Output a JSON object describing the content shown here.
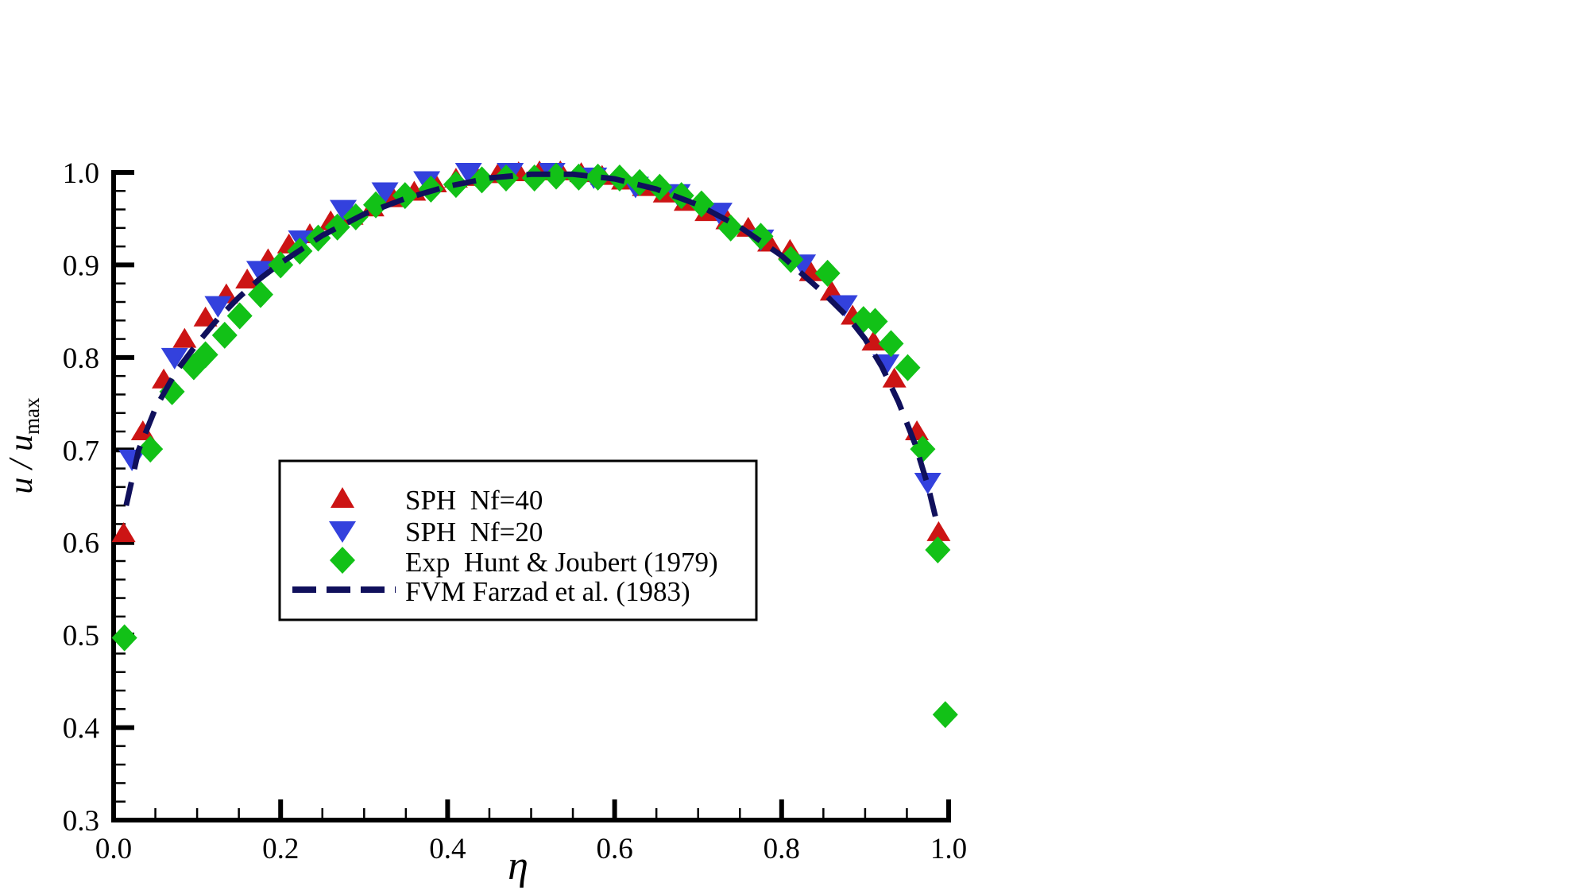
{
  "figure": {
    "background": "#ffffff"
  },
  "chart_data": {
    "type": "scatter",
    "title": "",
    "xlabel": "η",
    "ylabel_main": "u / u",
    "ylabel_sub": "max",
    "axis_color": "#000000",
    "grid": false,
    "legend_position": "inside-center-left",
    "x_axis": {
      "min": 0.0,
      "max": 1.0,
      "major": [
        0.0,
        0.2,
        0.4,
        0.6,
        0.8,
        1.0
      ],
      "labels": [
        "0.0",
        "0.2",
        "0.4",
        "0.6",
        "0.8",
        "1.0"
      ],
      "minor_step": 0.05
    },
    "y_axis": {
      "min": 0.3,
      "max": 1.0,
      "major": [
        1.0,
        0.9,
        0.8,
        0.7,
        0.6,
        0.5,
        0.4,
        0.3
      ],
      "labels": [
        "1.0",
        "0.9",
        "0.8",
        "0.7",
        "0.6",
        "0.5",
        "0.4",
        "0.3"
      ],
      "minor_step": 0.02
    },
    "series": [
      {
        "id": "sph-nf40",
        "name": "SPH  Nf=40",
        "marker": "triangle-up",
        "color": "#cc1414",
        "points": [
          [
            0.012,
            0.61
          ],
          [
            0.035,
            0.72
          ],
          [
            0.06,
            0.776
          ],
          [
            0.085,
            0.82
          ],
          [
            0.11,
            0.843
          ],
          [
            0.135,
            0.868
          ],
          [
            0.16,
            0.884
          ],
          [
            0.185,
            0.906
          ],
          [
            0.21,
            0.922
          ],
          [
            0.235,
            0.933
          ],
          [
            0.26,
            0.947
          ],
          [
            0.285,
            0.953
          ],
          [
            0.31,
            0.962
          ],
          [
            0.335,
            0.972
          ],
          [
            0.36,
            0.979
          ],
          [
            0.385,
            0.988
          ],
          [
            0.41,
            0.993
          ],
          [
            0.435,
            0.995
          ],
          [
            0.46,
            0.998
          ],
          [
            0.485,
            1.0
          ],
          [
            0.51,
            1.001
          ],
          [
            0.535,
            1.001
          ],
          [
            0.56,
            0.999
          ],
          [
            0.585,
            0.996
          ],
          [
            0.61,
            0.991
          ],
          [
            0.635,
            0.984
          ],
          [
            0.66,
            0.977
          ],
          [
            0.685,
            0.968
          ],
          [
            0.71,
            0.957
          ],
          [
            0.735,
            0.948
          ],
          [
            0.76,
            0.94
          ],
          [
            0.785,
            0.924
          ],
          [
            0.81,
            0.916
          ],
          [
            0.835,
            0.892
          ],
          [
            0.86,
            0.871
          ],
          [
            0.885,
            0.845
          ],
          [
            0.91,
            0.817
          ],
          [
            0.935,
            0.777
          ],
          [
            0.962,
            0.72
          ],
          [
            0.988,
            0.611
          ]
        ]
      },
      {
        "id": "sph-nf20",
        "name": "SPH  Nf=20",
        "marker": "triangle-down",
        "color": "#3341dd",
        "points": [
          [
            0.022,
            0.69
          ],
          [
            0.073,
            0.8
          ],
          [
            0.125,
            0.856
          ],
          [
            0.175,
            0.894
          ],
          [
            0.225,
            0.927
          ],
          [
            0.275,
            0.96
          ],
          [
            0.325,
            0.979
          ],
          [
            0.375,
            0.991
          ],
          [
            0.425,
            1.0
          ],
          [
            0.475,
            1.0
          ],
          [
            0.525,
            1.0
          ],
          [
            0.575,
            0.995
          ],
          [
            0.625,
            0.985
          ],
          [
            0.675,
            0.977
          ],
          [
            0.725,
            0.957
          ],
          [
            0.775,
            0.928
          ],
          [
            0.825,
            0.901
          ],
          [
            0.875,
            0.857
          ],
          [
            0.925,
            0.793
          ],
          [
            0.975,
            0.665
          ]
        ]
      },
      {
        "id": "exp-hunt-joubert",
        "name": "Exp  Hunt & Joubert (1979)",
        "marker": "diamond",
        "color": "#12c117",
        "points": [
          [
            0.013,
            0.497
          ],
          [
            0.044,
            0.701
          ],
          [
            0.07,
            0.763
          ],
          [
            0.096,
            0.79
          ],
          [
            0.11,
            0.803
          ],
          [
            0.133,
            0.824
          ],
          [
            0.151,
            0.845
          ],
          [
            0.176,
            0.868
          ],
          [
            0.2,
            0.9
          ],
          [
            0.223,
            0.915
          ],
          [
            0.245,
            0.929
          ],
          [
            0.268,
            0.941
          ],
          [
            0.29,
            0.952
          ],
          [
            0.314,
            0.965
          ],
          [
            0.349,
            0.975
          ],
          [
            0.38,
            0.982
          ],
          [
            0.41,
            0.987
          ],
          [
            0.441,
            0.992
          ],
          [
            0.47,
            0.994
          ],
          [
            0.504,
            0.994
          ],
          [
            0.53,
            0.996
          ],
          [
            0.557,
            0.995
          ],
          [
            0.58,
            0.995
          ],
          [
            0.606,
            0.994
          ],
          [
            0.63,
            0.989
          ],
          [
            0.654,
            0.984
          ],
          [
            0.68,
            0.975
          ],
          [
            0.704,
            0.966
          ],
          [
            0.739,
            0.94
          ],
          [
            0.775,
            0.931
          ],
          [
            0.811,
            0.906
          ],
          [
            0.855,
            0.891
          ],
          [
            0.898,
            0.841
          ],
          [
            0.912,
            0.839
          ],
          [
            0.931,
            0.815
          ],
          [
            0.951,
            0.789
          ],
          [
            0.969,
            0.701
          ],
          [
            0.987,
            0.592
          ],
          [
            0.996,
            0.414
          ]
        ]
      },
      {
        "id": "fvm-farzad",
        "name": "FVM Farzad et al. (1983)",
        "marker": "dashed-line",
        "color": "#10105c",
        "points": [
          [
            0.015,
            0.64
          ],
          [
            0.03,
            0.7
          ],
          [
            0.05,
            0.745
          ],
          [
            0.075,
            0.785
          ],
          [
            0.1,
            0.815
          ],
          [
            0.125,
            0.842
          ],
          [
            0.15,
            0.865
          ],
          [
            0.175,
            0.885
          ],
          [
            0.2,
            0.902
          ],
          [
            0.25,
            0.932
          ],
          [
            0.3,
            0.955
          ],
          [
            0.35,
            0.972
          ],
          [
            0.4,
            0.985
          ],
          [
            0.45,
            0.994
          ],
          [
            0.5,
            0.998
          ],
          [
            0.55,
            0.998
          ],
          [
            0.6,
            0.993
          ],
          [
            0.65,
            0.982
          ],
          [
            0.7,
            0.965
          ],
          [
            0.75,
            0.941
          ],
          [
            0.8,
            0.91
          ],
          [
            0.85,
            0.87
          ],
          [
            0.88,
            0.843
          ],
          [
            0.9,
            0.82
          ],
          [
            0.92,
            0.79
          ],
          [
            0.94,
            0.752
          ],
          [
            0.96,
            0.706
          ],
          [
            0.975,
            0.662
          ],
          [
            0.985,
            0.625
          ]
        ]
      }
    ]
  }
}
